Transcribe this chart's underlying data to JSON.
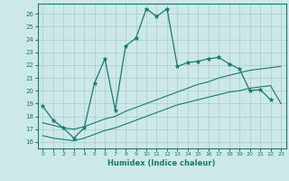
{
  "background_color": "#cce8e8",
  "grid_color": "#aacccc",
  "line_color": "#1a7a6e",
  "xlabel": "Humidex (Indice chaleur)",
  "xlim": [
    -0.5,
    23.5
  ],
  "ylim": [
    15.5,
    26.8
  ],
  "yticks": [
    16,
    17,
    18,
    19,
    20,
    21,
    22,
    23,
    24,
    25,
    26
  ],
  "xticks": [
    0,
    1,
    2,
    3,
    4,
    5,
    6,
    7,
    8,
    9,
    10,
    11,
    12,
    13,
    14,
    15,
    16,
    17,
    18,
    19,
    20,
    21,
    22,
    23
  ],
  "line1_x": [
    0,
    1,
    2,
    3,
    4,
    5,
    6,
    7,
    8,
    9,
    10,
    11,
    12,
    13,
    14,
    15,
    16,
    17,
    18,
    19,
    20,
    21,
    22
  ],
  "line1_y": [
    18.8,
    17.7,
    17.1,
    16.3,
    17.1,
    20.6,
    22.5,
    18.5,
    23.5,
    24.1,
    26.4,
    25.8,
    26.4,
    21.9,
    22.2,
    22.3,
    22.5,
    22.6,
    22.1,
    21.7,
    20.0,
    20.1,
    19.3
  ],
  "line2_x": [
    0,
    1,
    2,
    3,
    4,
    5,
    6,
    7,
    8,
    9,
    10,
    11,
    12,
    13,
    14,
    15,
    16,
    17,
    18,
    19,
    20,
    21,
    22,
    23
  ],
  "line2_y": [
    17.5,
    17.3,
    17.1,
    17.0,
    17.2,
    17.5,
    17.8,
    18.0,
    18.4,
    18.7,
    19.0,
    19.3,
    19.6,
    19.9,
    20.2,
    20.5,
    20.7,
    21.0,
    21.2,
    21.4,
    21.6,
    21.7,
    21.8,
    21.9
  ],
  "line3_x": [
    0,
    1,
    2,
    3,
    4,
    5,
    6,
    7,
    8,
    9,
    10,
    11,
    12,
    13,
    14,
    15,
    16,
    17,
    18,
    19,
    20,
    21,
    22,
    23
  ],
  "line3_y": [
    16.5,
    16.3,
    16.2,
    16.1,
    16.3,
    16.6,
    16.9,
    17.1,
    17.4,
    17.7,
    18.0,
    18.3,
    18.6,
    18.9,
    19.1,
    19.3,
    19.5,
    19.7,
    19.9,
    20.0,
    20.2,
    20.3,
    20.4,
    19.0
  ]
}
